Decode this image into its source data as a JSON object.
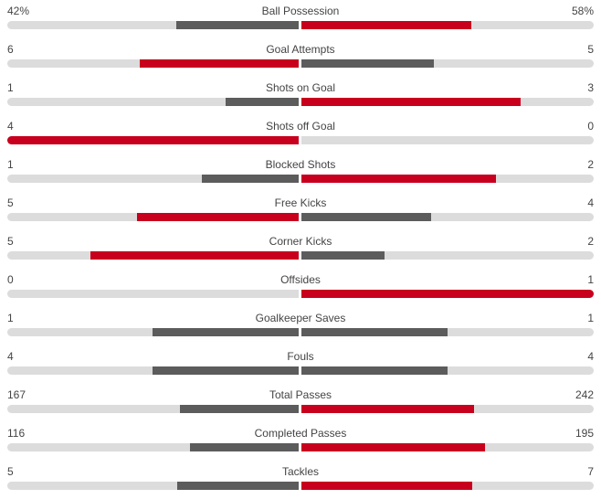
{
  "colors": {
    "leader": "#c8001e",
    "trailer": "#5c5c5c",
    "track": "#dcdcdc"
  },
  "stats": [
    {
      "name": "Ball Possession",
      "home": "42%",
      "away": "58%",
      "home_value": 42,
      "away_value": 58
    },
    {
      "name": "Goal Attempts",
      "home": "6",
      "away": "5",
      "home_value": 6,
      "away_value": 5
    },
    {
      "name": "Shots on Goal",
      "home": "1",
      "away": "3",
      "home_value": 1,
      "away_value": 3
    },
    {
      "name": "Shots off Goal",
      "home": "4",
      "away": "0",
      "home_value": 4,
      "away_value": 0
    },
    {
      "name": "Blocked Shots",
      "home": "1",
      "away": "2",
      "home_value": 1,
      "away_value": 2
    },
    {
      "name": "Free Kicks",
      "home": "5",
      "away": "4",
      "home_value": 5,
      "away_value": 4
    },
    {
      "name": "Corner Kicks",
      "home": "5",
      "away": "2",
      "home_value": 5,
      "away_value": 2
    },
    {
      "name": "Offsides",
      "home": "0",
      "away": "1",
      "home_value": 0,
      "away_value": 1
    },
    {
      "name": "Goalkeeper Saves",
      "home": "1",
      "away": "1",
      "home_value": 1,
      "away_value": 1
    },
    {
      "name": "Fouls",
      "home": "4",
      "away": "4",
      "home_value": 4,
      "away_value": 4
    },
    {
      "name": "Total Passes",
      "home": "167",
      "away": "242",
      "home_value": 167,
      "away_value": 242
    },
    {
      "name": "Completed Passes",
      "home": "116",
      "away": "195",
      "home_value": 116,
      "away_value": 195
    },
    {
      "name": "Tackles",
      "home": "5",
      "away": "7",
      "home_value": 5,
      "away_value": 7
    }
  ]
}
